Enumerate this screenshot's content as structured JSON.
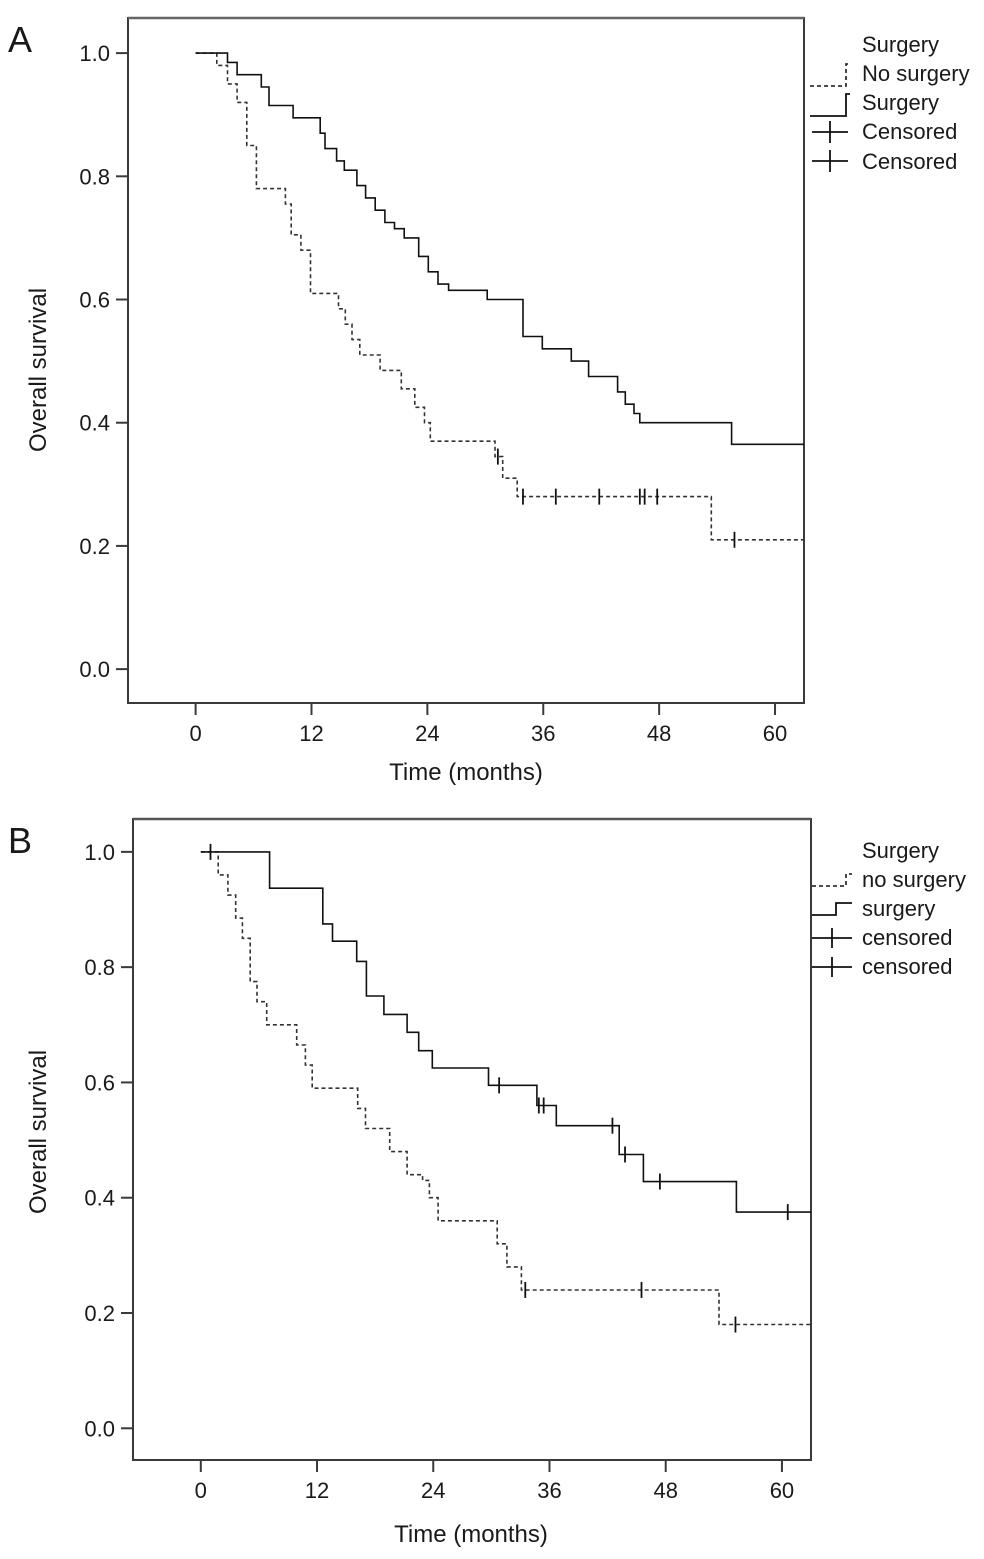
{
  "chart_data": [
    {
      "type": "line",
      "panel_label": "A",
      "xlabel": "Time (months)",
      "ylabel": "Overall survival",
      "xlim": [
        -7,
        63
      ],
      "ylim": [
        -0.055,
        1.057
      ],
      "x_ticks": [
        0,
        12,
        24,
        36,
        48,
        60
      ],
      "y_ticks": [
        0.0,
        0.2,
        0.4,
        0.6,
        0.8,
        1.0
      ],
      "y_tick_labels": [
        "0.0",
        "0.2",
        "0.4",
        "0.6",
        "0.8",
        "1.0"
      ],
      "legend": {
        "title": "Surgery",
        "entries": [
          "No surgery",
          "Surgery",
          "Censored",
          "Censored"
        ]
      },
      "series": [
        {
          "name": "No surgery",
          "style": "dashed",
          "color": "#333333",
          "step_x": [
            0,
            2.2,
            3.3,
            4.3,
            5.3,
            6.3,
            9.3,
            9.9,
            10.9,
            11.9,
            14.8,
            15.5,
            16.2,
            17.0,
            18.1,
            19.1,
            21.3,
            22.7,
            23.7,
            24.3,
            31.0,
            31.8,
            33.3,
            53.4,
            63
          ],
          "step_y": [
            1.0,
            0.98,
            0.95,
            0.92,
            0.85,
            0.78,
            0.755,
            0.705,
            0.68,
            0.61,
            0.585,
            0.56,
            0.535,
            0.51,
            0.51,
            0.485,
            0.455,
            0.425,
            0.4,
            0.37,
            0.345,
            0.31,
            0.28,
            0.21,
            0.21
          ],
          "censored": [
            31.3,
            33.9,
            37.3,
            41.8,
            46.0,
            46.5,
            47.8,
            55.8
          ]
        },
        {
          "name": "Surgery",
          "style": "solid",
          "color": "#111111",
          "step_x": [
            0,
            3.3,
            4.3,
            6.8,
            7.6,
            10.1,
            12.9,
            13.4,
            14.6,
            15.4,
            16.7,
            17.6,
            18.6,
            19.6,
            20.6,
            21.6,
            23.1,
            24.1,
            25.1,
            26.2,
            30.2,
            33.9,
            35.9,
            38.9,
            40.7,
            43.7,
            44.5,
            45.4,
            46.0,
            55.5,
            63
          ],
          "step_y": [
            1.0,
            0.985,
            0.965,
            0.945,
            0.915,
            0.895,
            0.87,
            0.845,
            0.825,
            0.81,
            0.785,
            0.765,
            0.745,
            0.725,
            0.715,
            0.7,
            0.67,
            0.645,
            0.625,
            0.615,
            0.6,
            0.54,
            0.52,
            0.5,
            0.475,
            0.45,
            0.43,
            0.415,
            0.4,
            0.365,
            0.365
          ]
        }
      ]
    },
    {
      "type": "line",
      "panel_label": "B",
      "xlabel": "Time (months)",
      "ylabel": "Overall survival",
      "xlim": [
        -7,
        63
      ],
      "ylim": [
        -0.055,
        1.057
      ],
      "x_ticks": [
        0,
        12,
        24,
        36,
        48,
        60
      ],
      "y_ticks": [
        0.0,
        0.2,
        0.4,
        0.6,
        0.8,
        1.0
      ],
      "y_tick_labels": [
        "0.0",
        "0.2",
        "0.4",
        "0.6",
        "0.8",
        "1.0"
      ],
      "legend": {
        "title": "Surgery",
        "entries": [
          "no surgery",
          "surgery",
          "censored",
          "censored"
        ]
      },
      "series": [
        {
          "name": "no surgery",
          "style": "dashed",
          "color": "#333333",
          "step_x": [
            0,
            1.8,
            2.8,
            3.6,
            4.3,
            5.1,
            5.8,
            6.8,
            9.9,
            10.8,
            11.5,
            16.2,
            17.0,
            18.5,
            19.5,
            21.3,
            22.9,
            23.6,
            24.5,
            30.6,
            31.6,
            33.1,
            53.5,
            63
          ],
          "step_y": [
            1.0,
            0.96,
            0.925,
            0.885,
            0.85,
            0.775,
            0.74,
            0.7,
            0.665,
            0.63,
            0.59,
            0.555,
            0.52,
            0.52,
            0.48,
            0.44,
            0.43,
            0.4,
            0.36,
            0.32,
            0.28,
            0.24,
            0.18,
            0.18
          ],
          "censored": [
            1.0,
            33.5,
            45.5,
            55.2
          ]
        },
        {
          "name": "surgery",
          "style": "solid",
          "color": "#111111",
          "step_x": [
            0,
            7.1,
            12.6,
            13.6,
            16.1,
            17.1,
            18.9,
            21.3,
            22.5,
            23.9,
            29.7,
            34.7,
            36.7,
            43.2,
            45.7,
            55.3,
            63
          ],
          "step_y": [
            1.0,
            0.937,
            0.875,
            0.845,
            0.81,
            0.75,
            0.718,
            0.687,
            0.655,
            0.625,
            0.595,
            0.56,
            0.525,
            0.475,
            0.428,
            0.375,
            0.375
          ],
          "censored": [
            30.8,
            34.9,
            35.4,
            42.5,
            43.8,
            47.4,
            60.6
          ]
        }
      ]
    }
  ],
  "colors": {
    "frame": "#3a3a3a",
    "frame_top": "#666666",
    "dashed_line": "#333333",
    "solid_line": "#111111"
  }
}
